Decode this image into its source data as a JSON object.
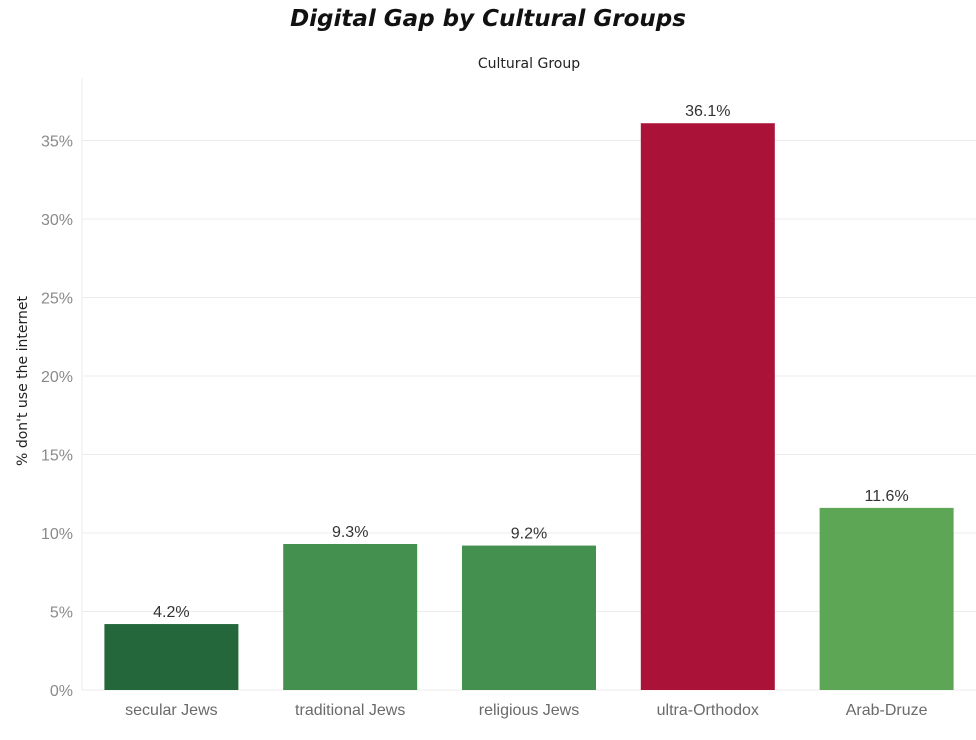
{
  "chart_data": {
    "type": "bar",
    "title": "Digital Gap by Cultural Groups",
    "column_header": "Cultural Group",
    "ylabel": "% don't use the internet",
    "xlabel": "",
    "categories": [
      "secular Jews",
      "traditional Jews",
      "religious Jews",
      "ultra-Orthodox",
      "Arab-Druze"
    ],
    "values": [
      4.2,
      9.3,
      9.2,
      36.1,
      11.6
    ],
    "data_labels": [
      "4.2%",
      "9.3%",
      "9.2%",
      "36.1%",
      "11.6%"
    ],
    "colors": [
      "#23673b",
      "#44914f",
      "#44914f",
      "#ab1238",
      "#5ca655"
    ],
    "ylim": [
      0,
      37.5
    ],
    "yticks": [
      0,
      5,
      10,
      15,
      20,
      25,
      30,
      35
    ],
    "ytick_labels": [
      "0%",
      "5%",
      "10%",
      "15%",
      "20%",
      "25%",
      "30%",
      "35%"
    ],
    "grid": true,
    "legend": "none"
  }
}
